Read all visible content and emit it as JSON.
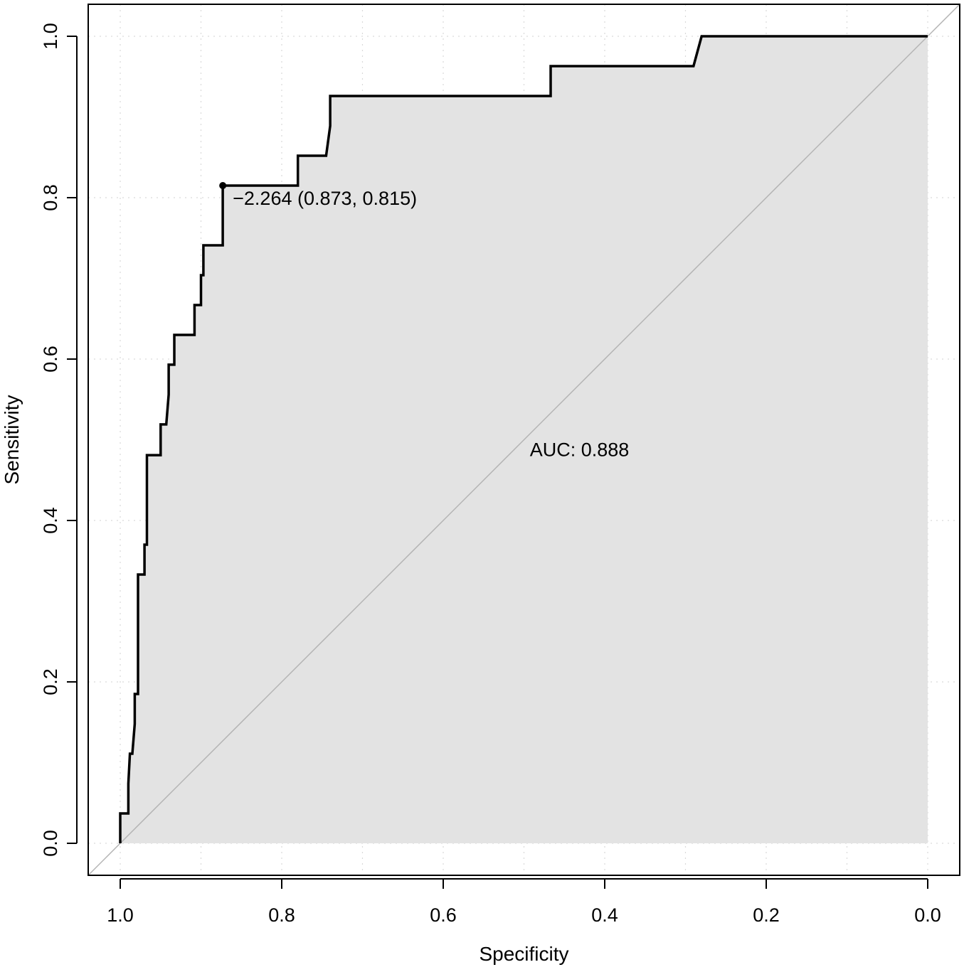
{
  "chart_data": {
    "type": "line",
    "title": "",
    "xlabel": "Specificity",
    "ylabel": "Sensitivity",
    "x_reversed": true,
    "xlim": [
      1.0,
      0.0
    ],
    "ylim": [
      0.0,
      1.0
    ],
    "xticks": [
      1.0,
      0.8,
      0.6,
      0.4,
      0.2,
      0.0
    ],
    "xtick_labels": [
      "1.0",
      "0.8",
      "0.6",
      "0.4",
      "0.2",
      "0.0"
    ],
    "yticks": [
      0.0,
      0.2,
      0.4,
      0.6,
      0.8,
      1.0
    ],
    "ytick_labels": [
      "0.0",
      "0.2",
      "0.4",
      "0.6",
      "0.8",
      "1.0"
    ],
    "grid": true,
    "auc_fill": true,
    "series": [
      {
        "x": [
          1.0,
          1.0,
          0.99,
          0.99,
          0.988,
          0.985,
          0.982,
          0.982,
          0.978,
          0.978,
          0.97,
          0.97,
          0.967,
          0.967,
          0.95,
          0.95,
          0.943,
          0.94,
          0.94,
          0.933,
          0.933,
          0.908,
          0.908,
          0.9,
          0.9,
          0.897,
          0.897,
          0.873,
          0.873,
          0.873,
          0.783,
          0.78,
          0.78,
          0.745,
          0.74,
          0.74,
          0.467,
          0.467,
          0.29,
          0.28,
          0.0
        ],
        "y": [
          0.0,
          0.037,
          0.037,
          0.074,
          0.111,
          0.111,
          0.148,
          0.185,
          0.185,
          0.333,
          0.333,
          0.37,
          0.37,
          0.481,
          0.481,
          0.519,
          0.519,
          0.556,
          0.593,
          0.593,
          0.63,
          0.63,
          0.667,
          0.667,
          0.704,
          0.704,
          0.741,
          0.741,
          0.815,
          0.815,
          0.815,
          0.815,
          0.852,
          0.852,
          0.889,
          0.926,
          0.926,
          0.963,
          0.963,
          1.0,
          1.0
        ]
      }
    ],
    "reference_line": {
      "x": [
        1.0,
        0.0
      ],
      "y": [
        0.0,
        1.0
      ]
    },
    "optimal_point": {
      "x": 0.873,
      "y": 0.815,
      "label": "−2.264 (0.873, 0.815)"
    },
    "auc_label": "AUC: 0.888",
    "auc_label_pos": {
      "x": 0.5,
      "y": 0.5
    },
    "colors": {
      "curve": "#000000",
      "fill": "#e3e3e3",
      "reference": "#b3b3b3",
      "grid": "#d9d9d9",
      "axis": "#000000"
    }
  }
}
